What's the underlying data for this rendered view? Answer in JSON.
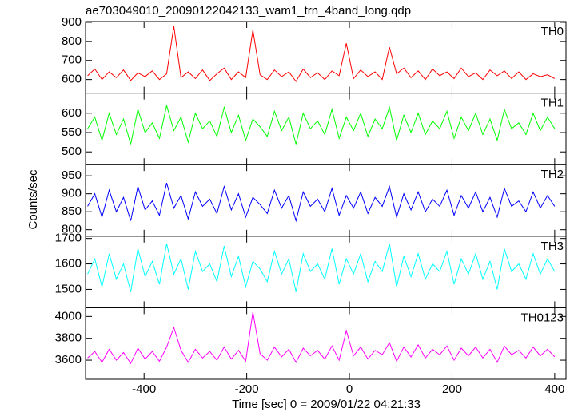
{
  "title": "ae703049010_20090122042133_wam1_trn_4band_long.qdp",
  "x_label": "Time [sec] 0 = 2009/01/22 04:21:33",
  "y_label": "Counts/sec",
  "chart_data": [
    {
      "type": "line",
      "label": "TH0",
      "color": "#ff0000",
      "xlim": [
        -514,
        422
      ],
      "xticks": [
        -400,
        -200,
        0,
        200,
        400
      ],
      "ylim": [
        529,
        904
      ],
      "yticks": [
        600,
        700,
        800,
        900
      ],
      "x": [
        -510,
        -496,
        -482,
        -468,
        -454,
        -440,
        -426,
        -412,
        -398,
        -384,
        -370,
        -356,
        -342,
        -328,
        -314,
        -300,
        -286,
        -272,
        -258,
        -244,
        -230,
        -216,
        -202,
        -188,
        -174,
        -160,
        -146,
        -132,
        -118,
        -104,
        -90,
        -76,
        -62,
        -48,
        -34,
        -20,
        -6,
        8,
        22,
        36,
        50,
        64,
        78,
        92,
        106,
        120,
        134,
        148,
        162,
        176,
        190,
        204,
        218,
        232,
        246,
        260,
        274,
        288,
        302,
        316,
        330,
        344,
        358,
        372,
        386,
        400
      ],
      "values": [
        620,
        655,
        600,
        640,
        610,
        650,
        595,
        635,
        615,
        645,
        600,
        630,
        880,
        610,
        640,
        605,
        650,
        595,
        630,
        660,
        600,
        640,
        610,
        860,
        625,
        600,
        650,
        615,
        640,
        590,
        655,
        610,
        635,
        600,
        645,
        620,
        790,
        605,
        650,
        615,
        640,
        600,
        770,
        630,
        660,
        610,
        645,
        600,
        655,
        620,
        640,
        605,
        660,
        615,
        635,
        600,
        650,
        620,
        645,
        605,
        640,
        600,
        630,
        615,
        625,
        605
      ]
    },
    {
      "type": "line",
      "label": "TH1",
      "color": "#00ff00",
      "xlim": [
        -514,
        422
      ],
      "xticks": [
        -400,
        -200,
        0,
        200,
        400
      ],
      "ylim": [
        467,
        652
      ],
      "yticks": [
        500,
        550,
        600
      ],
      "x": [
        -510,
        -496,
        -482,
        -468,
        -454,
        -440,
        -426,
        -412,
        -398,
        -384,
        -370,
        -356,
        -342,
        -328,
        -314,
        -300,
        -286,
        -272,
        -258,
        -244,
        -230,
        -216,
        -202,
        -188,
        -174,
        -160,
        -146,
        -132,
        -118,
        -104,
        -90,
        -76,
        -62,
        -48,
        -34,
        -20,
        -6,
        8,
        22,
        36,
        50,
        64,
        78,
        92,
        106,
        120,
        134,
        148,
        162,
        176,
        190,
        204,
        218,
        232,
        246,
        260,
        274,
        288,
        302,
        316,
        330,
        344,
        358,
        372,
        386,
        400
      ],
      "values": [
        560,
        590,
        530,
        600,
        545,
        585,
        520,
        610,
        550,
        575,
        535,
        620,
        555,
        590,
        525,
        600,
        560,
        580,
        540,
        615,
        550,
        595,
        530,
        585,
        565,
        540,
        605,
        555,
        590,
        520,
        600,
        560,
        580,
        545,
        610,
        535,
        590,
        555,
        600,
        540,
        585,
        560,
        615,
        530,
        595,
        550,
        600,
        545,
        580,
        560,
        605,
        535,
        590,
        555,
        600,
        545,
        585,
        530,
        610,
        560,
        575,
        545,
        600,
        555,
        590,
        560
      ]
    },
    {
      "type": "line",
      "label": "TH2",
      "color": "#0000ff",
      "xlim": [
        -514,
        422
      ],
      "xticks": [
        -400,
        -200,
        0,
        200,
        400
      ],
      "ylim": [
        782,
        981
      ],
      "yticks": [
        800,
        850,
        900,
        950
      ],
      "x": [
        -510,
        -496,
        -482,
        -468,
        -454,
        -440,
        -426,
        -412,
        -398,
        -384,
        -370,
        -356,
        -342,
        -328,
        -314,
        -300,
        -286,
        -272,
        -258,
        -244,
        -230,
        -216,
        -202,
        -188,
        -174,
        -160,
        -146,
        -132,
        -118,
        -104,
        -90,
        -76,
        -62,
        -48,
        -34,
        -20,
        -6,
        8,
        22,
        36,
        50,
        64,
        78,
        92,
        106,
        120,
        134,
        148,
        162,
        176,
        190,
        204,
        218,
        232,
        246,
        260,
        274,
        288,
        302,
        316,
        330,
        344,
        358,
        372,
        386,
        400
      ],
      "values": [
        865,
        900,
        835,
        910,
        850,
        890,
        825,
        920,
        855,
        880,
        840,
        930,
        860,
        895,
        830,
        905,
        865,
        885,
        845,
        920,
        855,
        900,
        835,
        890,
        870,
        845,
        910,
        860,
        895,
        825,
        905,
        865,
        885,
        850,
        915,
        840,
        895,
        860,
        905,
        845,
        890,
        865,
        920,
        835,
        900,
        855,
        905,
        850,
        885,
        865,
        910,
        840,
        895,
        860,
        905,
        850,
        890,
        835,
        915,
        865,
        880,
        850,
        905,
        860,
        895,
        865
      ]
    },
    {
      "type": "line",
      "label": "TH3",
      "color": "#00ffff",
      "xlim": [
        -514,
        422
      ],
      "xticks": [
        -400,
        -200,
        0,
        200,
        400
      ],
      "ylim": [
        1428,
        1709
      ],
      "yticks": [
        1500,
        1600,
        1700
      ],
      "x": [
        -510,
        -496,
        -482,
        -468,
        -454,
        -440,
        -426,
        -412,
        -398,
        -384,
        -370,
        -356,
        -342,
        -328,
        -314,
        -300,
        -286,
        -272,
        -258,
        -244,
        -230,
        -216,
        -202,
        -188,
        -174,
        -160,
        -146,
        -132,
        -118,
        -104,
        -90,
        -76,
        -62,
        -48,
        -34,
        -20,
        -6,
        8,
        22,
        36,
        50,
        64,
        78,
        92,
        106,
        120,
        134,
        148,
        162,
        176,
        190,
        204,
        218,
        232,
        246,
        260,
        274,
        288,
        302,
        316,
        330,
        344,
        358,
        372,
        386,
        400
      ],
      "values": [
        1560,
        1620,
        1510,
        1640,
        1540,
        1600,
        1490,
        1660,
        1550,
        1610,
        1520,
        1680,
        1560,
        1620,
        1500,
        1650,
        1570,
        1600,
        1530,
        1670,
        1550,
        1630,
        1510,
        1610,
        1580,
        1530,
        1650,
        1560,
        1620,
        1490,
        1640,
        1570,
        1600,
        1540,
        1660,
        1520,
        1620,
        1560,
        1640,
        1530,
        1610,
        1570,
        1680,
        1510,
        1630,
        1550,
        1640,
        1540,
        1600,
        1570,
        1650,
        1520,
        1620,
        1560,
        1640,
        1540,
        1610,
        1500,
        1660,
        1570,
        1600,
        1540,
        1640,
        1560,
        1620,
        1570
      ]
    },
    {
      "type": "line",
      "label": "TH0123",
      "color": "#ff00ff",
      "xlim": [
        -514,
        422
      ],
      "xticks": [
        -400,
        -200,
        0,
        200,
        400
      ],
      "ylim": [
        3425,
        4080
      ],
      "yticks": [
        3600,
        3800,
        4000
      ],
      "x": [
        -510,
        -496,
        -482,
        -468,
        -454,
        -440,
        -426,
        -412,
        -398,
        -384,
        -370,
        -356,
        -342,
        -328,
        -314,
        -300,
        -286,
        -272,
        -258,
        -244,
        -230,
        -216,
        -202,
        -188,
        -174,
        -160,
        -146,
        -132,
        -118,
        -104,
        -90,
        -76,
        -62,
        -48,
        -34,
        -20,
        -6,
        8,
        22,
        36,
        50,
        64,
        78,
        92,
        106,
        120,
        134,
        148,
        162,
        176,
        190,
        204,
        218,
        232,
        246,
        260,
        274,
        288,
        302,
        316,
        330,
        344,
        358,
        372,
        386,
        400
      ],
      "values": [
        3620,
        3680,
        3580,
        3700,
        3600,
        3670,
        3570,
        3710,
        3610,
        3680,
        3590,
        3720,
        3900,
        3690,
        3580,
        3700,
        3620,
        3680,
        3600,
        3720,
        3610,
        3690,
        3590,
        4040,
        3660,
        3600,
        3720,
        3630,
        3700,
        3580,
        3710,
        3640,
        3690,
        3610,
        3730,
        3600,
        3870,
        3640,
        3720,
        3610,
        3690,
        3650,
        3760,
        3590,
        3720,
        3630,
        3740,
        3620,
        3700,
        3650,
        3730,
        3600,
        3710,
        3640,
        3720,
        3620,
        3700,
        3580,
        3730,
        3650,
        3690,
        3620,
        3720,
        3640,
        3700,
        3630
      ]
    }
  ]
}
